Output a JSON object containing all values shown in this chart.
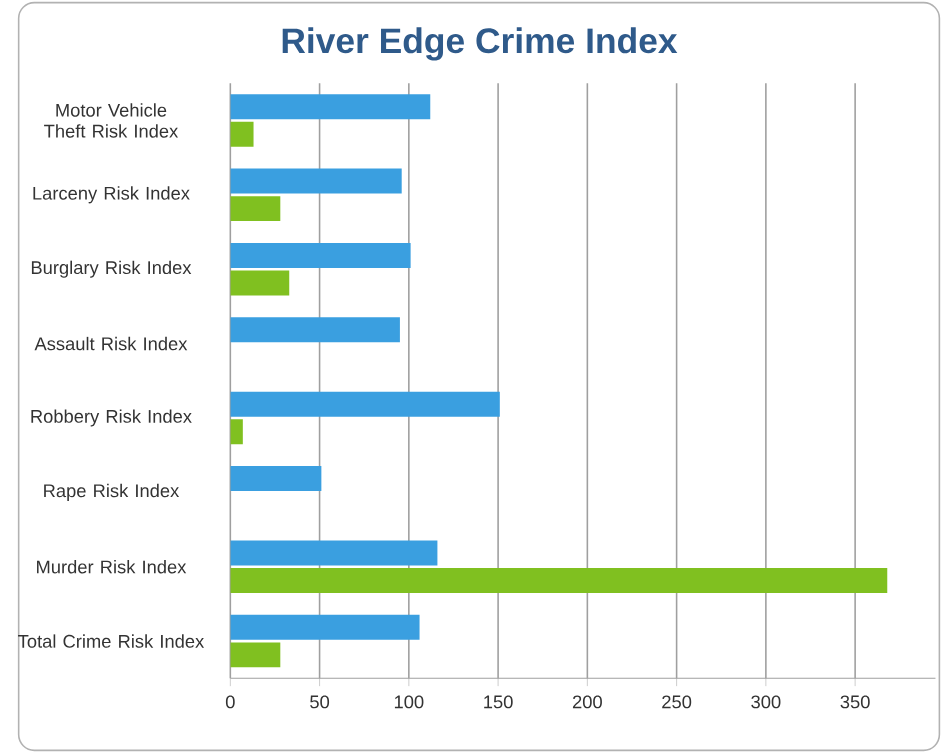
{
  "chart_data": {
    "type": "bar",
    "orientation": "horizontal",
    "title": "River Edge Crime Index",
    "categories": [
      "Motor Vehicle Theft Risk Index",
      "Larceny Risk Index",
      "Burglary Risk Index",
      "Assault Risk Index",
      "Robbery Risk Index",
      "Rape Risk Index",
      "Murder Risk Index",
      "Total Crime Risk Index"
    ],
    "series": [
      {
        "color": "#3a9fe0",
        "values": [
          112,
          96,
          101,
          95,
          151,
          51,
          116,
          106
        ]
      },
      {
        "color": "#80c020",
        "values": [
          13,
          28,
          33,
          null,
          7,
          null,
          368,
          28
        ]
      }
    ],
    "xlim": [
      0,
      395
    ],
    "xticks": [
      0,
      50,
      100,
      150,
      200,
      250,
      300,
      350
    ],
    "grid": "x"
  }
}
